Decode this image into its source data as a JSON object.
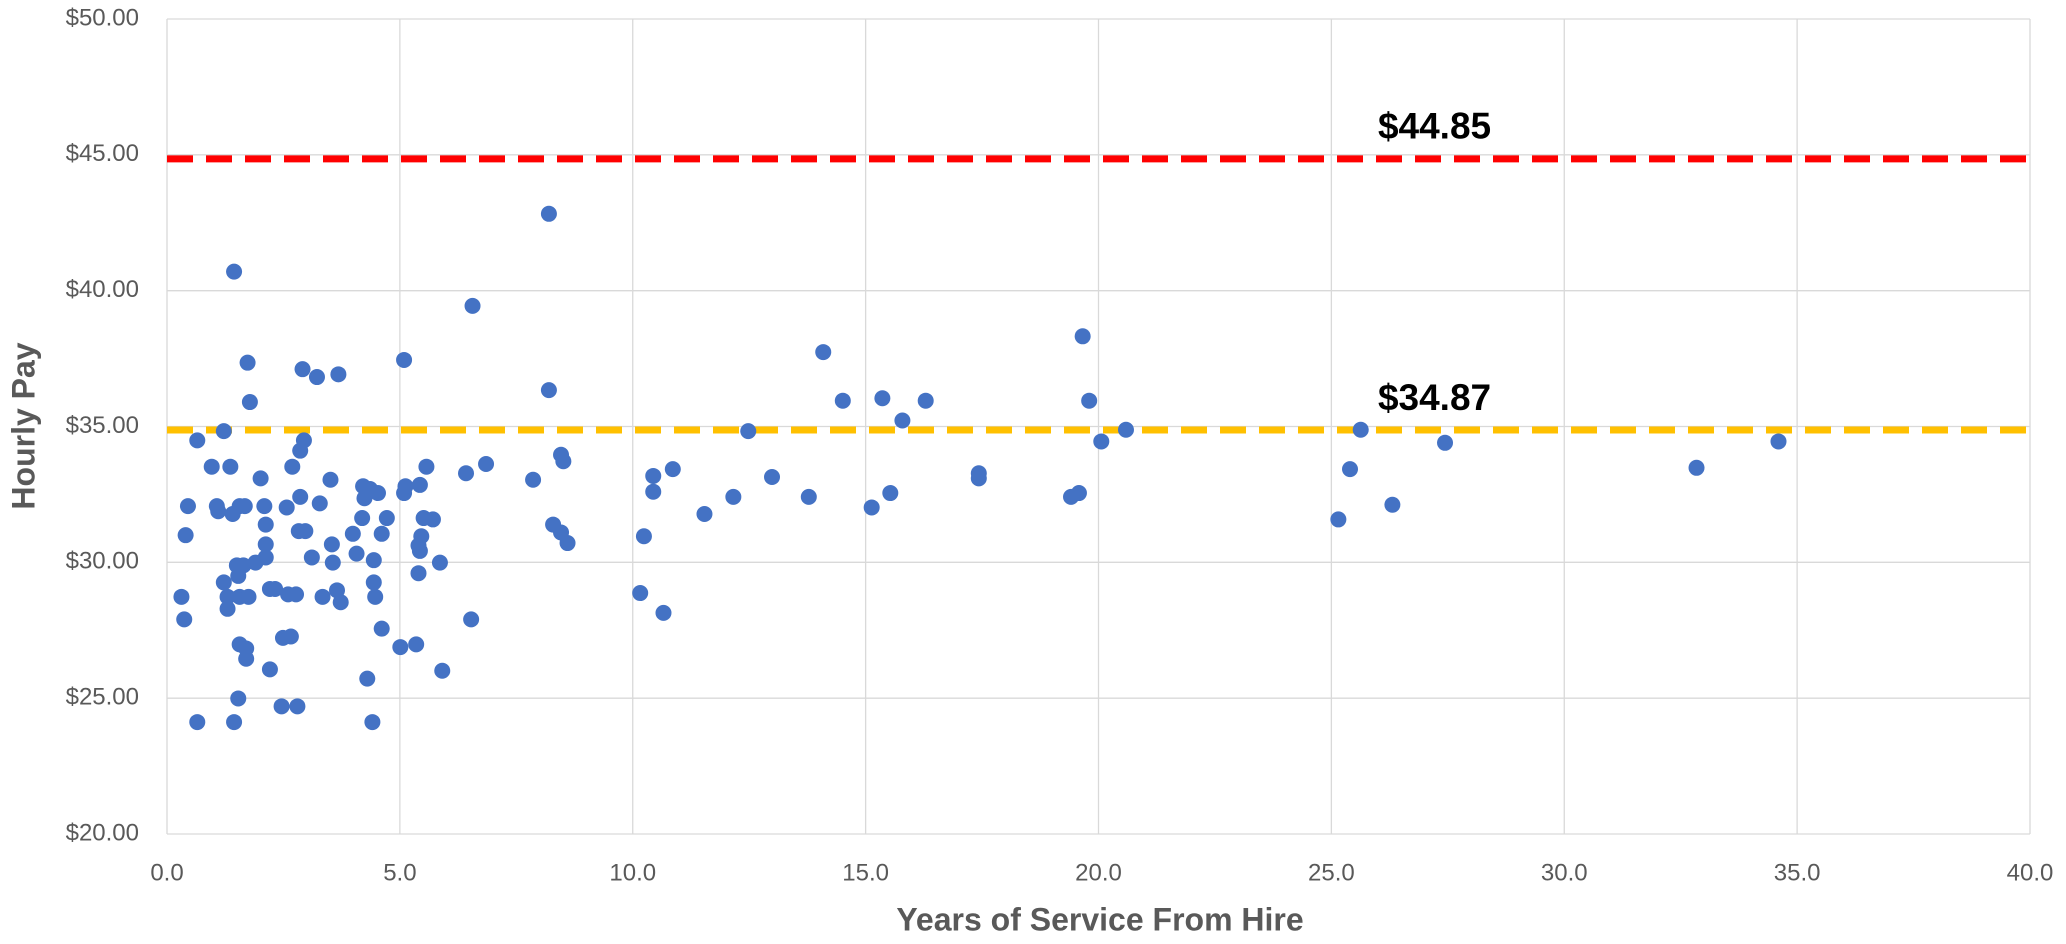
{
  "chart_data": {
    "type": "scatter",
    "xlabel": "Years of Service From Hire",
    "ylabel": "Hourly Pay",
    "color": "#4472c4",
    "grid": true,
    "xlim": [
      0,
      40
    ],
    "ylim": [
      20,
      50
    ],
    "xticks": [
      {
        "value": 0,
        "label": "0.0"
      },
      {
        "value": 5,
        "label": "5.0"
      },
      {
        "value": 10,
        "label": "10.0"
      },
      {
        "value": 15,
        "label": "15.0"
      },
      {
        "value": 20,
        "label": "20.0"
      },
      {
        "value": 25,
        "label": "25.0"
      },
      {
        "value": 30,
        "label": "30.0"
      },
      {
        "value": 35,
        "label": "35.0"
      },
      {
        "value": 40,
        "label": "40.0"
      }
    ],
    "yticks": [
      {
        "value": 20,
        "label": "$20.00"
      },
      {
        "value": 25,
        "label": "$25.00"
      },
      {
        "value": 30,
        "label": "$30.00"
      },
      {
        "value": 35,
        "label": "$35.00"
      },
      {
        "value": 40,
        "label": "$40.00"
      },
      {
        "value": 45,
        "label": "$45.00"
      },
      {
        "value": 50,
        "label": "$50.00"
      }
    ],
    "reference_lines": [
      {
        "value": 44.85,
        "label": "$44.85",
        "color": "#ff0000"
      },
      {
        "value": 34.87,
        "label": "$34.87",
        "color": "#ffc000"
      }
    ],
    "x": [
      0.31,
      0.4,
      0.37,
      0.45,
      0.65,
      0.65,
      0.96,
      1.07,
      1.1,
      1.22,
      1.22,
      1.3,
      1.3,
      1.36,
      1.41,
      1.44,
      1.44,
      1.5,
      1.53,
      1.56,
      1.53,
      1.56,
      1.56,
      1.64,
      1.67,
      1.7,
      1.73,
      1.7,
      1.75,
      1.78,
      1.9,
      2.01,
      2.09,
      2.12,
      2.12,
      2.12,
      2.21,
      2.21,
      2.32,
      2.46,
      2.49,
      2.57,
      2.6,
      2.66,
      2.69,
      2.77,
      2.8,
      2.83,
      2.86,
      2.86,
      2.91,
      2.94,
      2.97,
      3.11,
      3.22,
      3.28,
      3.34,
      3.51,
      3.54,
      3.56,
      3.65,
      3.68,
      3.73,
      3.99,
      4.07,
      4.19,
      4.21,
      4.24,
      4.3,
      4.36,
      4.41,
      4.44,
      4.44,
      4.47,
      4.53,
      4.61,
      4.61,
      4.72,
      5.01,
      5.09,
      5.09,
      5.12,
      5.35,
      5.4,
      5.4,
      5.43,
      5.43,
      5.46,
      5.51,
      5.57,
      5.71,
      5.86,
      5.91,
      6.42,
      6.53,
      6.56,
      6.85,
      7.86,
      8.2,
      8.2,
      8.29,
      8.46,
      8.46,
      8.51,
      8.6,
      10.16,
      10.24,
      10.44,
      10.44,
      10.66,
      10.86,
      11.54,
      12.16,
      12.48,
      12.99,
      13.78,
      14.09,
      14.51,
      15.13,
      15.36,
      15.53,
      15.79,
      16.29,
      17.43,
      17.43,
      19.41,
      19.58,
      19.66,
      19.8,
      20.06,
      20.59,
      25.15,
      25.4,
      25.63,
      26.31,
      27.44,
      32.84,
      34.6
    ],
    "values": [
      28.73,
      31.0,
      27.9,
      32.07,
      34.49,
      24.12,
      33.52,
      32.07,
      31.88,
      34.83,
      29.26,
      28.73,
      28.29,
      33.52,
      31.78,
      40.7,
      24.12,
      29.89,
      29.5,
      32.07,
      24.99,
      28.73,
      26.98,
      29.89,
      32.07,
      26.83,
      37.35,
      26.45,
      28.73,
      35.9,
      29.99,
      33.09,
      32.07,
      30.66,
      31.39,
      30.18,
      26.06,
      29.02,
      29.02,
      24.7,
      27.22,
      32.02,
      28.82,
      27.27,
      33.52,
      28.82,
      24.7,
      31.15,
      32.41,
      34.11,
      37.11,
      34.49,
      31.15,
      30.18,
      36.82,
      32.17,
      28.73,
      33.04,
      30.66,
      29.99,
      28.97,
      36.92,
      28.53,
      31.05,
      30.32,
      31.63,
      32.8,
      32.36,
      25.72,
      32.7,
      24.12,
      30.08,
      29.26,
      28.73,
      32.55,
      31.05,
      27.56,
      31.63,
      26.88,
      37.45,
      32.55,
      32.8,
      26.98,
      30.62,
      29.6,
      32.85,
      30.42,
      30.96,
      31.63,
      33.52,
      31.58,
      29.99,
      26.01,
      33.28,
      27.9,
      39.44,
      33.62,
      33.04,
      42.83,
      36.34,
      31.39,
      33.96,
      31.1,
      33.72,
      30.71,
      28.87,
      30.96,
      33.18,
      32.6,
      28.14,
      33.43,
      31.78,
      32.41,
      34.83,
      33.14,
      32.41,
      37.74,
      35.95,
      32.02,
      36.04,
      32.55,
      35.22,
      35.95,
      33.28,
      33.09,
      32.41,
      32.55,
      38.32,
      35.95,
      34.45,
      34.88,
      31.58,
      33.43,
      34.88,
      32.12,
      34.4,
      33.48,
      34.45
    ]
  }
}
